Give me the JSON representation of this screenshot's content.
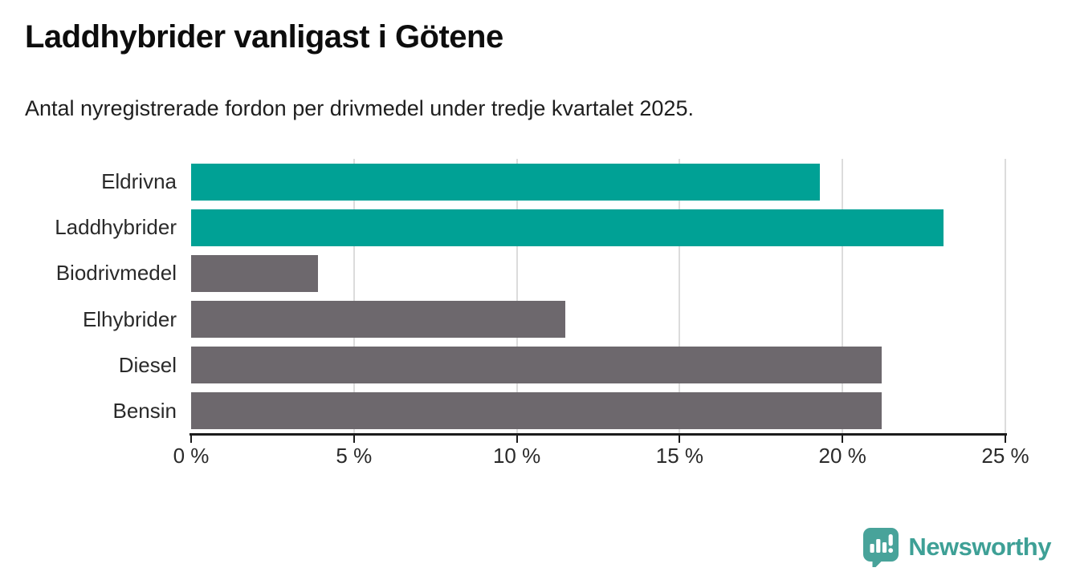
{
  "header": {
    "title": "Laddhybrider vanligast i Götene",
    "subtitle": "Antal nyregistrerade fordon per drivmedel under tredje kvartalet 2025."
  },
  "chart_data": {
    "type": "bar",
    "orientation": "horizontal",
    "title": "Laddhybrider vanligast i Götene",
    "subtitle": "Antal nyregistrerade fordon per drivmedel under tredje kvartalet 2025.",
    "categories": [
      "Eldrivna",
      "Laddhybrider",
      "Biodrivmedel",
      "Elhybrider",
      "Diesel",
      "Bensin"
    ],
    "values": [
      19.3,
      23.1,
      3.9,
      11.5,
      21.2,
      21.2
    ],
    "unit": "%",
    "bar_colors": [
      "#00a195",
      "#00a195",
      "#6d686d",
      "#6d686d",
      "#6d686d",
      "#6d686d"
    ],
    "xlabel": "",
    "ylabel": "",
    "xlim": [
      0,
      25
    ],
    "x_ticks": [
      "0 %",
      "5 %",
      "10 %",
      "15 %",
      "20 %",
      "25 %"
    ],
    "grid": "vertical-only",
    "legend": "none"
  },
  "colors": {
    "accent_teal": "#00a195",
    "bar_gray": "#6d686d",
    "gridline": "#dcdcdc",
    "axis": "#1c1c1c",
    "title_text": "#0d0d0d",
    "body_text": "#2a2a2a",
    "brand_teal": "#3ea096"
  },
  "branding": {
    "logo_text": "Newsworthy",
    "logo_icon": "newsworthy-chart-bubble-icon"
  }
}
